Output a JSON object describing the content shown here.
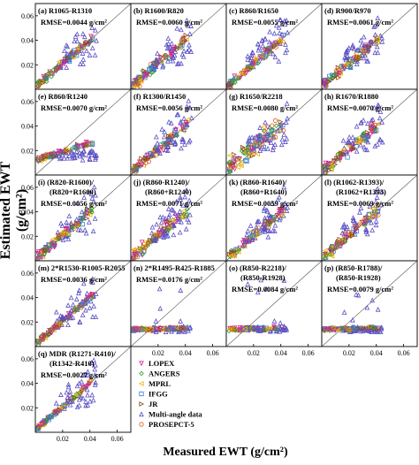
{
  "figure": {
    "ylabel": "Estimated EWT (g/cm²)",
    "xlabel": "Measured EWT (g/cm²)"
  },
  "colors": {
    "LOPEX": "#d81b9a",
    "ANGERS": "#2e9e2e",
    "MPRL": "#e8b400",
    "IFGG": "#3a7fd0",
    "JR": "#8b4513",
    "Multi-angle data": "#5a4fc4",
    "PROSEPCT-5": "#e05a1a"
  },
  "chart_data": {
    "type": "scatter",
    "grid": "4 columns x 5 rows of small scatter panels, measured vs estimated EWT, each with a 1:1 line",
    "xlim": [
      0,
      0.07
    ],
    "ylim": [
      0,
      0.07
    ],
    "xticks": [
      "0.02",
      "0.04",
      "0.06"
    ],
    "yticks": [
      "0.02",
      "0.04",
      "0.06"
    ],
    "legend": {
      "placement": "bottom-right panel area",
      "entries": [
        {
          "label": "LOPEX",
          "marker": "▽"
        },
        {
          "label": "ANGERS",
          "marker": "◇"
        },
        {
          "label": "MPRL",
          "marker": "◁"
        },
        {
          "label": "IFGG",
          "marker": "□"
        },
        {
          "label": "JR",
          "marker": "▷"
        },
        {
          "label": "Multi-angle data",
          "marker": "△"
        },
        {
          "label": "PROSEPCT-5",
          "marker": "○"
        }
      ]
    },
    "panels": [
      {
        "id": "a",
        "title": "(a)  R1065-R1310",
        "rmse": "RMSE=0.0044 g/cm²",
        "rmse_value": 0.0044,
        "pattern": "linear"
      },
      {
        "id": "b",
        "title": "(b) R1600/R820",
        "rmse": "RMSE=0.0060 g/cm²",
        "rmse_value": 0.006,
        "pattern": "linear"
      },
      {
        "id": "c",
        "title": "(c)  R860/R1650",
        "rmse": "RMSE=0.0055 g/cm²",
        "rmse_value": 0.0055,
        "pattern": "linear"
      },
      {
        "id": "d",
        "title": "(d)  R900/R970",
        "rmse": "RMSE=0.0061 g/cm²",
        "rmse_value": 0.0061,
        "pattern": "linear"
      },
      {
        "id": "e",
        "title": "(e)  R860/R1240",
        "rmse": "RMSE=0.0070 g/cm²",
        "rmse_value": 0.007,
        "pattern": "flat"
      },
      {
        "id": "f",
        "title": "(f)  R1300/R1450",
        "rmse": "RMSE=0.0056 g/cm²",
        "rmse_value": 0.0056,
        "pattern": "linear"
      },
      {
        "id": "g",
        "title": "(g)  R1650/R2218",
        "rmse": "RMSE=0.0080 g/cm²",
        "rmse_value": 0.008,
        "pattern": "scatter"
      },
      {
        "id": "h",
        "title": "(h)  R1670/R1880",
        "rmse": "RMSE=0.0070 g/cm²",
        "rmse_value": 0.007,
        "pattern": "linear"
      },
      {
        "id": "i",
        "title": "(i)  (R820-R1600)/",
        "title2": "(R820+R1600)",
        "rmse": "RMSE=0.0056 g/cm²",
        "rmse_value": 0.0056,
        "pattern": "linear"
      },
      {
        "id": "j",
        "title": "(j)  (R860-R1240)/",
        "title2": "(R860+R1240)",
        "rmse": "RMSE=0.0071 g/cm²",
        "rmse_value": 0.0071,
        "pattern": "linear"
      },
      {
        "id": "k",
        "title": "(k)  (R860-R1640)/",
        "title2": "(R860+R1640)",
        "rmse": "RMSE=0.0059 g/cm²",
        "rmse_value": 0.0059,
        "pattern": "linear"
      },
      {
        "id": "l",
        "title": "(l)  (R1062-R1393)/",
        "title2": "(R1062+R1393)",
        "rmse": "RMSE=0.0069 g/cm²",
        "rmse_value": 0.0069,
        "pattern": "linear"
      },
      {
        "id": "m",
        "title": "(m)  2*R1530-R1005-R2055",
        "rmse": "RMSE=0.0036 g/cm²",
        "rmse_value": 0.0036,
        "pattern": "linear"
      },
      {
        "id": "n",
        "title": "(n)  2*R1495-R425-R1885",
        "rmse": "RMSE=0.0176 g/cm²",
        "rmse_value": 0.0176,
        "pattern": "flatlow"
      },
      {
        "id": "o",
        "title": "(o)  (R850-R2218)/",
        "title2": "(R850-R1928)",
        "rmse": "RMSE=0.0084 g/cm²",
        "rmse_value": 0.0084,
        "pattern": "flatlow"
      },
      {
        "id": "p",
        "title": "(p)  (R850-R1788)/",
        "title2": "(R850-R1928)",
        "rmse": "RMSE=0.0079 g/cm²",
        "rmse_value": 0.0079,
        "pattern": "flatlow"
      },
      {
        "id": "q",
        "title": "(q)  MDR (R1271-R410)/",
        "title2": "(R1342-R410)",
        "rmse": "RMSE=0.0027 g/cm²",
        "rmse_value": 0.0027,
        "pattern": "linear"
      }
    ]
  }
}
